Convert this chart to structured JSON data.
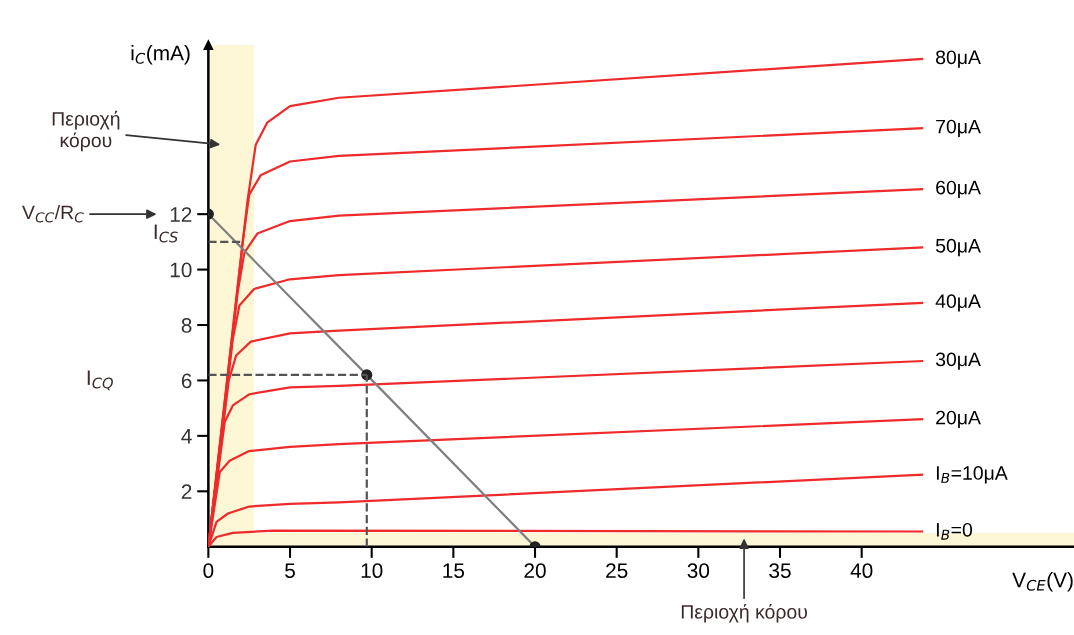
{
  "chart_data": {
    "type": "line",
    "xlabel": "V$_{CE}$(V)",
    "ylabel": "i$_{C}$(mA)",
    "xlim": [
      0,
      53
    ],
    "ylim": [
      0,
      18.1
    ],
    "xticks": [
      0,
      5,
      10,
      15,
      20,
      25,
      30,
      35,
      40
    ],
    "yticks": [
      2,
      4,
      6,
      8,
      10,
      12
    ],
    "grid": false,
    "legend": false,
    "marker": "none",
    "line_style": "solid",
    "bands": [
      {
        "axis": "x",
        "from": 0,
        "to": 2.8,
        "color": "#fdf7d6"
      },
      {
        "axis": "y",
        "from": 0,
        "to": 0.5,
        "color": "#fdf7d6"
      }
    ],
    "series": [
      {
        "name": "80μA",
        "color": "#ee2a2a",
        "x": [
          0,
          2.4,
          2.9,
          3.6,
          5,
          8,
          43.7
        ],
        "values": [
          0,
          12.5,
          14.5,
          15.3,
          15.9,
          16.2,
          17.6
        ]
      },
      {
        "name": "70μA",
        "color": "#ee2a2a",
        "x": [
          0,
          2.1,
          2.5,
          3.2,
          5,
          8,
          43.7
        ],
        "values": [
          0,
          11,
          12.7,
          13.4,
          13.9,
          14.1,
          15.1
        ]
      },
      {
        "name": "60μA",
        "color": "#ee2a2a",
        "x": [
          0,
          1.8,
          2.2,
          3,
          5,
          8,
          43.7
        ],
        "values": [
          0,
          9.2,
          10.6,
          11.3,
          11.75,
          11.95,
          12.9
        ]
      },
      {
        "name": "50μA",
        "color": "#ee2a2a",
        "x": [
          0,
          1.5,
          1.9,
          2.8,
          5,
          8,
          43.7
        ],
        "values": [
          0,
          7.5,
          8.7,
          9.3,
          9.65,
          9.8,
          10.8
        ]
      },
      {
        "name": "40μA",
        "color": "#ee2a2a",
        "x": [
          0,
          1.25,
          1.7,
          2.6,
          5,
          8,
          43.7
        ],
        "values": [
          0,
          6,
          6.9,
          7.4,
          7.7,
          7.8,
          8.8
        ]
      },
      {
        "name": "30μA",
        "color": "#ee2a2a",
        "x": [
          0,
          1,
          1.5,
          2.5,
          5,
          8,
          43.7
        ],
        "values": [
          0,
          4.5,
          5.1,
          5.5,
          5.75,
          5.8,
          6.7
        ]
      },
      {
        "name": "20μA",
        "color": "#ee2a2a",
        "x": [
          0,
          0.7,
          1.3,
          2.5,
          5,
          8,
          43.7
        ],
        "values": [
          0,
          2.7,
          3.1,
          3.45,
          3.6,
          3.7,
          4.6
        ]
      },
      {
        "name": "I$_{B}$=10μA",
        "color": "#ee2a2a",
        "x": [
          0,
          0.5,
          1.2,
          2.5,
          5,
          8,
          43.7
        ],
        "values": [
          0,
          0.9,
          1.2,
          1.45,
          1.55,
          1.6,
          2.6
        ]
      },
      {
        "name": "I$_{B}$=0",
        "color": "#ee2a2a",
        "x": [
          0,
          0.5,
          1.5,
          4,
          43.7
        ],
        "values": [
          0,
          0.35,
          0.5,
          0.58,
          0.55
        ]
      },
      {
        "color": "#808080",
        "marker": "circle",
        "x": [
          0,
          9.7,
          20
        ],
        "values": [
          12,
          6.2,
          0
        ]
      },
      {
        "color": "#555555",
        "line_style": "dashed",
        "x": [
          0,
          2.1
        ],
        "values": [
          11,
          11
        ]
      },
      {
        "color": "#555555",
        "line_style": "dashed",
        "x": [
          0,
          9.7
        ],
        "values": [
          6.2,
          6.2
        ]
      },
      {
        "color": "#555555",
        "line_style": "dashed",
        "x": [
          9.7,
          9.7
        ],
        "values": [
          0,
          6.2
        ]
      }
    ],
    "annotations": [
      "Περιοχή\nκόρου",
      "V$_{CC}$/R$_{C}$",
      "I$_{CS}$",
      "I$_{CQ}$",
      "Περιοχή κόρου"
    ]
  }
}
